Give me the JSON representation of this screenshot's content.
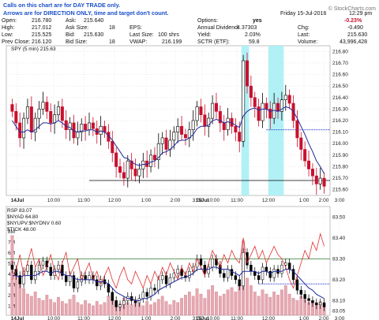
{
  "note": {
    "line1": "Calls on this chart are for DAY TRADE only.",
    "line2": "Arrows are for DIRECTION ONLY, time and target don't count."
  },
  "header": {
    "left": [
      {
        "label": "Open:",
        "value": "216.780"
      },
      {
        "label": "High:",
        "value": "217.012"
      },
      {
        "label": "Low:",
        "value": "215.525"
      },
      {
        "label": "Prev Close:",
        "value": "216.120"
      }
    ],
    "mid": [
      {
        "label": "Ask:",
        "value": "215.640",
        "label2": "Bid:",
        "value2": "215.630"
      },
      {
        "label": "Ask Size:",
        "value": "18"
      },
      {
        "label": "Bid Size:",
        "value": "18"
      }
    ],
    "eps_label": "EPS:",
    "last_size_label": "Last Size:",
    "last_size": "100 shrs",
    "vwap_label": "VWAP:",
    "vwap": "216.199",
    "options_label": "Options:",
    "options": "yes",
    "annual_div_label": "Annual Dividend:",
    "annual_div": "4.37303",
    "yield_label": "Yield:",
    "yield": "2.03%",
    "sctr_label": "SCTR (ETF):",
    "sctr": "59.8",
    "date": "Friday  15-Jul-2016",
    "time": "12:29 pm",
    "chg_pct": "-0.23%",
    "chg_label": "Chg:",
    "chg": "-0.490",
    "last_label": "Last:",
    "last": "215.630",
    "volume_label": "Volume:",
    "volume": "43,996,428",
    "logo": "© StockCharts.com"
  },
  "colors": {
    "up": "#000000",
    "down": "#c8102e",
    "ma": "#1f2a9e",
    "highlight": "#a8f0f4",
    "ratio": "#e03030",
    "volume": "#e8a8b0",
    "hline_green": "#2e7d32",
    "hline_blue": "#3344cc",
    "grid": "#d8d8d8",
    "note_text": "#1a4fc9"
  },
  "chart_data": [
    {
      "type": "candlestick",
      "title": "SPY (5 min) 215.63",
      "y_ticks": [
        "216.80",
        "216.70",
        "216.60",
        "216.50",
        "216.40",
        "216.30",
        "216.20",
        "216.10",
        "216.00",
        "215.90",
        "215.80",
        "215.70",
        "215.60"
      ],
      "ylim": [
        215.55,
        216.85
      ],
      "x_ticks": [
        "14Jul",
        "10:00",
        "11:00",
        "12:00",
        "1:00",
        "2:00",
        "3:00",
        "15Jul",
        "10:00",
        "11:00",
        "12:00",
        "1:00",
        "2:00",
        "3:00"
      ],
      "series": [
        {
          "name": "SPY close (estimated)",
          "values": [
            216.28,
            216.18,
            216.05,
            216.22,
            216.32,
            216.1,
            216.22,
            216.3,
            216.36,
            216.28,
            216.18,
            216.25,
            216.32,
            216.2,
            216.12,
            216.18,
            216.05,
            216.1,
            216.17,
            216.12,
            216.18,
            216.13,
            216.08,
            216.15,
            216.1,
            216.02,
            215.92,
            215.8,
            215.75,
            215.7,
            215.85,
            215.78,
            215.72,
            215.78,
            215.85,
            215.8,
            215.9,
            215.86,
            216.0,
            216.05,
            215.95,
            216.03,
            216.1,
            216.15,
            216.08,
            216.05,
            216.12,
            216.2,
            216.32,
            216.25,
            216.15,
            216.22,
            216.35,
            216.28,
            216.18,
            216.12,
            216.22,
            216.15,
            216.1,
            216.02,
            216.72,
            216.5,
            216.4,
            216.32,
            216.2,
            216.35,
            216.3,
            216.22,
            216.35,
            216.28,
            216.38,
            216.42,
            216.35,
            216.2,
            216.05,
            215.95,
            215.85,
            215.78,
            215.72,
            215.65,
            215.7,
            215.63
          ]
        },
        {
          "name": "Moving average (estimated)",
          "values": [
            216.2,
            216.15,
            216.1,
            216.1,
            216.12,
            216.1,
            216.12,
            216.15,
            216.18,
            216.18,
            216.17,
            216.18,
            216.2,
            216.18,
            216.15,
            216.14,
            216.11,
            216.1,
            216.11,
            216.11,
            216.12,
            216.12,
            216.1,
            216.11,
            216.1,
            216.07,
            216.03,
            215.98,
            215.93,
            215.88,
            215.87,
            215.84,
            215.82,
            215.81,
            215.82,
            215.82,
            215.84,
            215.85,
            215.88,
            215.92,
            215.93,
            215.95,
            215.98,
            216.02,
            216.03,
            216.03,
            216.05,
            216.08,
            216.13,
            216.15,
            216.15,
            216.16,
            216.2,
            216.21,
            216.2,
            216.18,
            216.19,
            216.18,
            216.16,
            216.14,
            216.24,
            216.28,
            216.3,
            216.31,
            216.29,
            216.3,
            216.3,
            216.28,
            216.29,
            216.28,
            216.3,
            216.32,
            216.31,
            216.28,
            216.22,
            216.15,
            216.08,
            216.0,
            215.93,
            215.85,
            215.8,
            215.74
          ]
        }
      ],
      "highlights": [
        {
          "x_start": 60,
          "x_end": 61
        },
        {
          "x_start": 67,
          "x_end": 70
        }
      ],
      "hlines": [
        {
          "y": 216.12,
          "color": "blue",
          "x_start": 66
        },
        {
          "y": 215.68,
          "color": "black",
          "x_start": 20,
          "x_end": 85
        }
      ]
    },
    {
      "type": "line+bar",
      "title": "RSP 83.07",
      "legend": [
        "$NYAD 64.80",
        "$NYUPV:$NYDNV 0.60",
        "$TICK 48.00"
      ],
      "y_ticks": [
        "83.50",
        "83.40",
        "83.30",
        "83.20",
        "83.10",
        "83.05"
      ],
      "ylim": [
        83.03,
        83.55
      ],
      "volume_ticks": [
        "8M",
        "7M",
        "6M",
        "5M",
        "4M",
        "3M",
        "2M",
        "1M"
      ],
      "x_ticks": [
        "14Jul",
        "10:00",
        "11:00",
        "12:00",
        "1:00",
        "2:00",
        "3:00",
        "15Jul",
        "10:00",
        "11:00",
        "12:00",
        "1:00",
        "2:00",
        "3:00"
      ],
      "series": [
        {
          "name": "RSP close (estimated)",
          "values": [
            83.25,
            83.22,
            83.18,
            83.24,
            83.27,
            83.2,
            83.24,
            83.27,
            83.29,
            83.26,
            83.22,
            83.25,
            83.27,
            83.22,
            83.19,
            83.22,
            83.16,
            83.19,
            83.22,
            83.2,
            83.22,
            83.2,
            83.17,
            83.2,
            83.18,
            83.14,
            83.1,
            83.07,
            83.08,
            83.1,
            83.12,
            83.1,
            83.09,
            83.11,
            83.14,
            83.12,
            83.16,
            83.15,
            83.2,
            83.22,
            83.18,
            83.21,
            83.23,
            83.25,
            83.22,
            83.21,
            83.24,
            83.26,
            83.3,
            83.27,
            83.23,
            83.26,
            83.3,
            83.27,
            83.23,
            83.21,
            83.25,
            83.22,
            83.2,
            83.17,
            83.33,
            83.27,
            83.24,
            83.22,
            83.2,
            83.26,
            83.24,
            83.21,
            83.25,
            83.23,
            83.27,
            83.28,
            83.25,
            83.2,
            83.15,
            83.13,
            83.11,
            83.1,
            83.09,
            83.08,
            83.09,
            83.07
          ]
        },
        {
          "name": "Ratio line (estimated)",
          "values": [
            83.2,
            83.24,
            83.32,
            83.22,
            83.28,
            83.35,
            83.26,
            83.3,
            83.22,
            83.26,
            83.32,
            83.24,
            83.2,
            83.28,
            83.33,
            83.22,
            83.26,
            83.3,
            83.2,
            83.24,
            83.28,
            83.2,
            83.24,
            83.18,
            83.22,
            83.26,
            83.2,
            83.16,
            83.22,
            83.26,
            83.2,
            83.18,
            83.24,
            83.2,
            83.16,
            83.22,
            83.18,
            83.24,
            83.2,
            83.26,
            83.22,
            83.28,
            83.24,
            83.2,
            83.26,
            83.22,
            83.28,
            83.24,
            83.3,
            83.26,
            83.22,
            83.28,
            83.34,
            83.3,
            83.26,
            83.32,
            83.28,
            83.34,
            83.3,
            83.28,
            83.4,
            83.28,
            83.32,
            83.36,
            83.3,
            83.34,
            83.28,
            83.32,
            83.36,
            83.32,
            83.3,
            83.26,
            83.2,
            83.16,
            83.22,
            83.28,
            83.34,
            83.3,
            83.38,
            83.34,
            83.42,
            83.36
          ]
        },
        {
          "name": "Moving average (estimated)",
          "values": [
            83.22,
            83.22,
            83.21,
            83.22,
            83.22,
            83.22,
            83.22,
            83.23,
            83.24,
            83.24,
            83.23,
            83.24,
            83.24,
            83.23,
            83.22,
            83.22,
            83.21,
            83.2,
            83.2,
            83.2,
            83.2,
            83.2,
            83.19,
            83.19,
            83.19,
            83.18,
            83.16,
            83.14,
            83.13,
            83.12,
            83.11,
            83.11,
            83.1,
            83.1,
            83.11,
            83.11,
            83.12,
            83.13,
            83.15,
            83.16,
            83.17,
            83.18,
            83.19,
            83.2,
            83.21,
            83.21,
            83.22,
            83.23,
            83.25,
            83.25,
            83.25,
            83.25,
            83.26,
            83.26,
            83.25,
            83.25,
            83.25,
            83.24,
            83.23,
            83.22,
            83.24,
            83.24,
            83.24,
            83.24,
            83.23,
            83.24,
            83.24,
            83.23,
            83.24,
            83.24,
            83.24,
            83.25,
            83.25,
            83.24,
            83.22,
            83.2,
            83.18,
            83.16,
            83.15,
            83.13,
            83.12,
            83.11
          ]
        },
        {
          "name": "Volume in millions (estimated)",
          "values": [
            7.5,
            4.0,
            3.2,
            2.5,
            2.0,
            1.8,
            2.2,
            1.6,
            1.4,
            1.9,
            1.5,
            1.2,
            1.7,
            1.3,
            1.1,
            1.5,
            1.9,
            1.2,
            1.0,
            1.4,
            1.1,
            0.9,
            1.3,
            1.0,
            1.2,
            1.8,
            2.0,
            1.4,
            1.1,
            1.6,
            1.2,
            1.0,
            1.5,
            1.1,
            0.9,
            1.3,
            1.0,
            1.2,
            1.5,
            1.8,
            1.3,
            1.0,
            1.4,
            1.2,
            1.6,
            1.9,
            2.2,
            1.8,
            2.5,
            2.0,
            1.6,
            2.4,
            2.8,
            2.2,
            1.8,
            2.0,
            2.4,
            2.6,
            2.2,
            3.0,
            7.0,
            3.5,
            2.8,
            2.2,
            1.8,
            2.4,
            2.0,
            1.7,
            2.2,
            1.9,
            2.4,
            2.8,
            2.0,
            1.6,
            1.4,
            1.8,
            1.5,
            1.2,
            1.4,
            1.1,
            1.3,
            1.0
          ]
        }
      ],
      "hlines": [
        {
          "y": 83.3,
          "color": "green"
        },
        {
          "y": 83.18,
          "color": "blue",
          "x_start": 64
        }
      ]
    }
  ]
}
